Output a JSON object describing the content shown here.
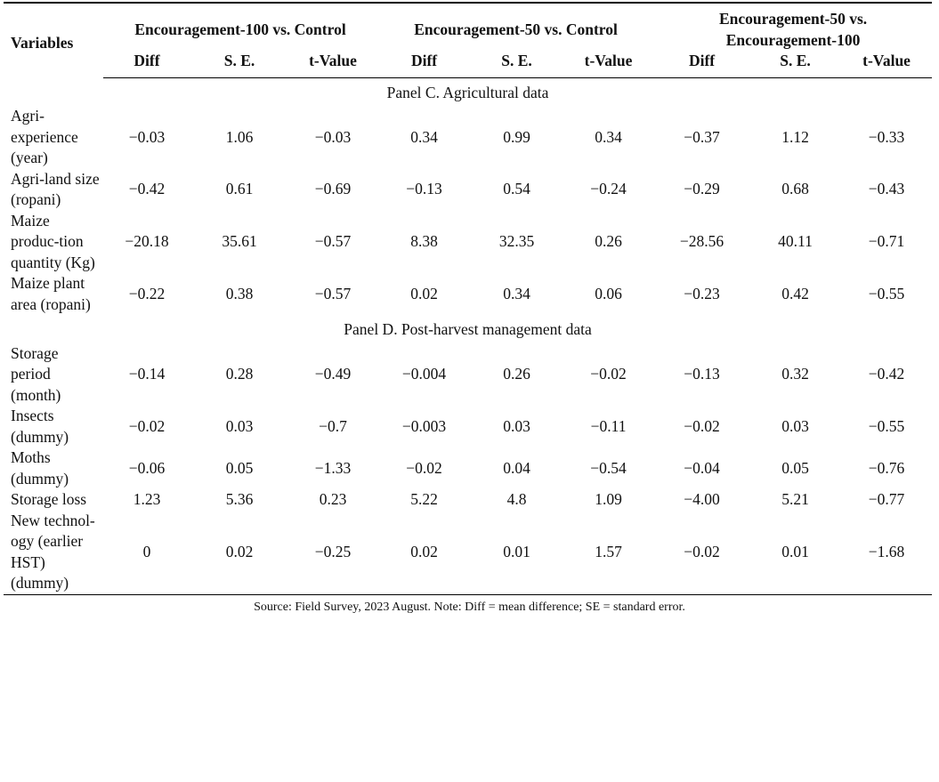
{
  "header": {
    "variables": "Variables",
    "groups": [
      "Encouragement-100 vs. Control",
      "Encouragement-50 vs. Control",
      "Encouragement-50 vs. Encouragement-100"
    ],
    "subcols": [
      "Diff",
      "S. E.",
      "t-Value",
      "Diff",
      "S. E.",
      "t-Value",
      "Diff",
      "S. E.",
      "t-Value"
    ]
  },
  "panels": [
    {
      "title": "Panel C. Agricultural data",
      "rows": [
        {
          "label": "Agri-​experience (year)",
          "values": [
            "−0.03",
            "1.06",
            "−0.03",
            "0.34",
            "0.99",
            "0.34",
            "−0.37",
            "1.12",
            "−0.33"
          ]
        },
        {
          "label": "Agri-​land size (ropani)",
          "values": [
            "−0.42",
            "0.61",
            "−0.69",
            "−0.13",
            "0.54",
            "−0.24",
            "−0.29",
            "0.68",
            "−0.43"
          ]
        },
        {
          "label": "Maize produc-​tion quantity (Kg)",
          "values": [
            "−20.18",
            "35.61",
            "−0.57",
            "8.38",
            "32.35",
            "0.26",
            "−28.56",
            "40.11",
            "−0.71"
          ]
        },
        {
          "label": "Maize plant area (ropani)",
          "values": [
            "−0.22",
            "0.38",
            "−0.57",
            "0.02",
            "0.34",
            "0.06",
            "−0.23",
            "0.42",
            "−0.55"
          ]
        }
      ]
    },
    {
      "title": "Panel D. Post-harvest management data",
      "rows": [
        {
          "label": "Storage period (month)",
          "values": [
            "−0.14",
            "0.28",
            "−0.49",
            "−0.004",
            "0.26",
            "−0.02",
            "−0.13",
            "0.32",
            "−0.42"
          ]
        },
        {
          "label": "Insects (dummy)",
          "values": [
            "−0.02",
            "0.03",
            "−0.7",
            "−0.003",
            "0.03",
            "−0.11",
            "−0.02",
            "0.03",
            "−0.55"
          ]
        },
        {
          "label": "Moths (dummy)",
          "values": [
            "−0.06",
            "0.05",
            "−1.33",
            "−0.02",
            "0.04",
            "−0.54",
            "−0.04",
            "0.05",
            "−0.76"
          ]
        },
        {
          "label": "Storage loss",
          "values": [
            "1.23",
            "5.36",
            "0.23",
            "5.22",
            "4.8",
            "1.09",
            "−4.00",
            "5.21",
            "−0.77"
          ]
        },
        {
          "label": "New technol-​ogy (earlier HST) (dummy)",
          "values": [
            "0",
            "0.02",
            "−0.25",
            "0.02",
            "0.01",
            "1.57",
            "−0.02",
            "0.01",
            "−1.68"
          ]
        }
      ]
    }
  ],
  "note": "Source: Field Survey, 2023 August. Note: Diff = mean difference; SE = standard error."
}
